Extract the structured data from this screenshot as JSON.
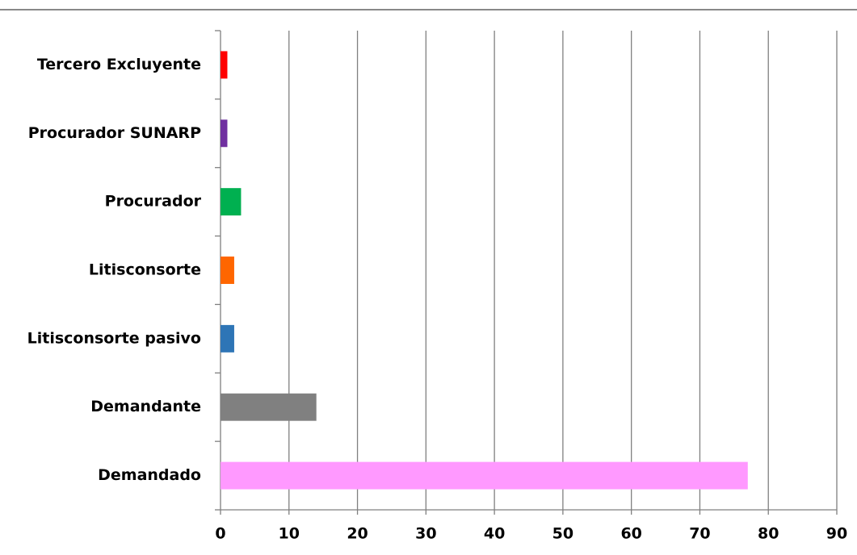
{
  "chart_data": {
    "type": "barh",
    "categories": [
      "Demandado",
      "Demandante",
      "Litisconsorte pasivo",
      "Litisconsorte",
      "Procurador",
      "Procurador SUNARP",
      "Tercero Excluyente"
    ],
    "values": [
      77,
      14,
      2,
      2,
      3,
      1,
      1
    ],
    "colors": [
      "#ff99ff",
      "#808080",
      "#2e75b6",
      "#ff6600",
      "#00b050",
      "#7030a0",
      "#ff0000"
    ],
    "xlim": [
      0,
      90
    ],
    "xticks": [
      0,
      10,
      20,
      30,
      40,
      50,
      60,
      70,
      80,
      90
    ],
    "grid": true
  }
}
